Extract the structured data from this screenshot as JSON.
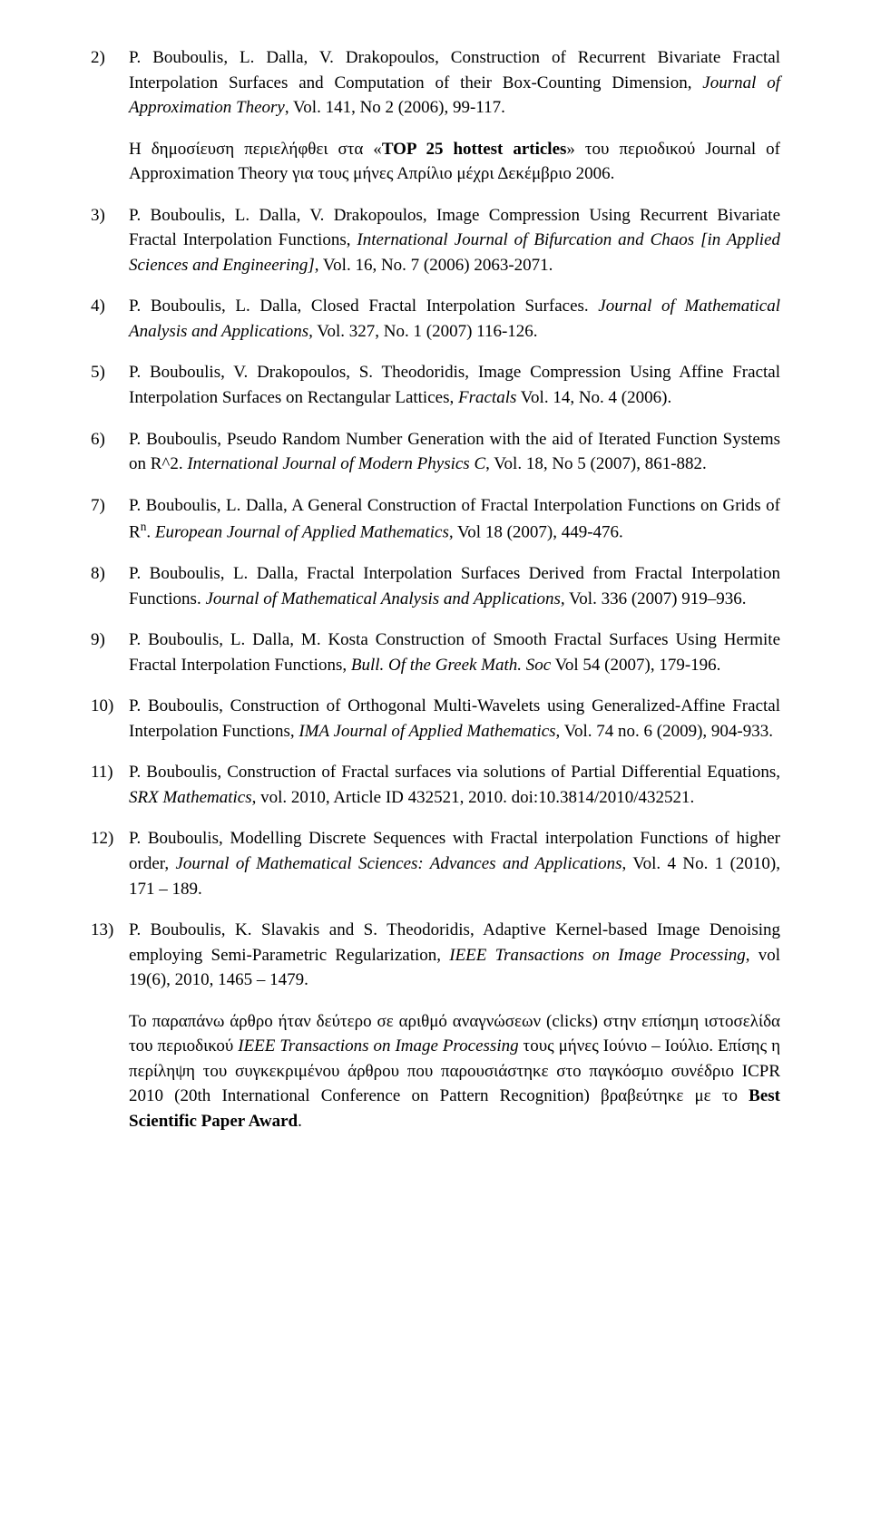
{
  "entries": [
    {
      "num": "2)",
      "segments": [
        {
          "t": "P. Bouboulis, L. Dalla, V. Drakopoulos, Construction of Recurrent Bivariate Fractal Interpolation Surfaces and Computation of their Box-Counting Dimension, "
        },
        {
          "t": "Journal of Approximation Theory",
          "i": true
        },
        {
          "t": ", Vol. 141, No 2 (2006), 99-117."
        }
      ],
      "note": [
        {
          "t": "Η δημοσίευση περιελήφθει στα «"
        },
        {
          "t": "TOP 25 hottest articles",
          "b": true
        },
        {
          "t": "» του περιοδικού Journal of Approximation Theory για τους μήνες Απρίλιο μέχρι Δεκέμβριο 2006."
        }
      ]
    },
    {
      "num": "3)",
      "segments": [
        {
          "t": "P. Bouboulis, L. Dalla, V. Drakopoulos, Image Compression Using Recurrent Bivariate Fractal Interpolation Functions, "
        },
        {
          "t": "International Journal of Bifurcation and Chaos [in Applied Sciences and Engineering]",
          "i": true
        },
        {
          "t": ", Vol. 16, No. 7 (2006) 2063-2071."
        }
      ]
    },
    {
      "num": "4)",
      "segments": [
        {
          "t": "P. Bouboulis, L. Dalla, Closed Fractal Interpolation Surfaces. "
        },
        {
          "t": "Journal of Mathematical Analysis and Applications,",
          "i": true
        },
        {
          "t": " Vol. 327, No. 1 (2007) 116-126."
        }
      ]
    },
    {
      "num": "5)",
      "segments": [
        {
          "t": "P. Bouboulis, V. Drakopoulos, S. Theodoridis, Image Compression Using Affine Fractal Interpolation Surfaces on Rectangular Lattices, "
        },
        {
          "t": "Fractals",
          "i": true
        },
        {
          "t": " Vol. 14, No. 4 (2006)."
        }
      ]
    },
    {
      "num": "6)",
      "segments": [
        {
          "t": "P. Bouboulis, Pseudo Random Number Generation with the aid of Iterated Function Systems on R^2. "
        },
        {
          "t": "International Journal of Modern Physics C",
          "i": true
        },
        {
          "t": ", Vol. 18, No 5 (2007), 861-882."
        }
      ]
    },
    {
      "num": "7)",
      "segments": [
        {
          "t": "P. Bouboulis, L. Dalla, A General Construction of Fractal Interpolation Functions on Grids of R"
        },
        {
          "t": "n",
          "sup": true
        },
        {
          "t": ". "
        },
        {
          "t": "European Journal of Applied Mathematics,",
          "i": true
        },
        {
          "t": " Vol 18 (2007), 449-476."
        }
      ]
    },
    {
      "num": "8)",
      "segments": [
        {
          "t": "P. Bouboulis, L. Dalla, Fractal Interpolation Surfaces Derived from Fractal Interpolation Functions. "
        },
        {
          "t": "Journal of Mathematical Analysis and Applications,",
          "i": true
        },
        {
          "t": " Vol. 336 (2007) 919–936."
        }
      ]
    },
    {
      "num": "9)",
      "segments": [
        {
          "t": "P. Bouboulis, L. Dalla, M. Kosta Construction of Smooth Fractal Surfaces Using Hermite Fractal Interpolation Functions, "
        },
        {
          "t": "Bull. Of the Greek Math. Soc",
          "i": true
        },
        {
          "t": " Vol 54 (2007), 179-196."
        }
      ]
    },
    {
      "num": "10)",
      "segments": [
        {
          "t": "P. Bouboulis, Construction of Orthogonal Multi-Wavelets using Generalized-Affine Fractal Interpolation Functions, "
        },
        {
          "t": "IMA Journal of Applied Mathematics",
          "i": true
        },
        {
          "t": ", Vol. 74 no. 6 (2009), 904-933."
        }
      ]
    },
    {
      "num": "11)",
      "segments": [
        {
          "t": "P. Bouboulis, Construction of Fractal surfaces via solutions of Partial Differential Equations, "
        },
        {
          "t": "SRX Mathematics",
          "i": true
        },
        {
          "t": ", vol. 2010, Article ID 432521, 2010. doi:10.3814/2010/432521."
        }
      ]
    },
    {
      "num": "12)",
      "segments": [
        {
          "t": "P. Bouboulis, Modelling Discrete Sequences with Fractal interpolation Functions of higher order, "
        },
        {
          "t": "Journal of Mathematical Sciences: Advances and Applications",
          "i": true
        },
        {
          "t": ", Vol. 4 No. 1 (2010), 171 – 189."
        }
      ]
    },
    {
      "num": "13)",
      "segments": [
        {
          "t": "P. Bouboulis, K. Slavakis and S. Theodoridis, Adaptive Kernel-based Image Denoising employing Semi-Parametric Regularization, "
        },
        {
          "t": "IEEE Transactions on Image Processing",
          "i": true
        },
        {
          "t": ", vol 19(6), 2010, 1465 – 1479."
        }
      ],
      "note": [
        {
          "t": "Το παραπάνω άρθρο ήταν δεύτερο σε αριθμό αναγνώσεων (clicks) στην επίσημη ιστοσελίδα του περιοδικού "
        },
        {
          "t": "IEEE Transactions on Image Processing",
          "i": true
        },
        {
          "t": " τους μήνες Ιούνιο – Ιούλιο. Επίσης η περίληψη του συγκεκριμένου άρθρου που παρουσιάστηκε στο παγκόσμιο συνέδριο ICPR 2010 (20th International Conference on Pattern Recognition) βραβεύτηκε με το "
        },
        {
          "t": "Best Scientific Paper Award",
          "b": true
        },
        {
          "t": "."
        }
      ]
    }
  ]
}
